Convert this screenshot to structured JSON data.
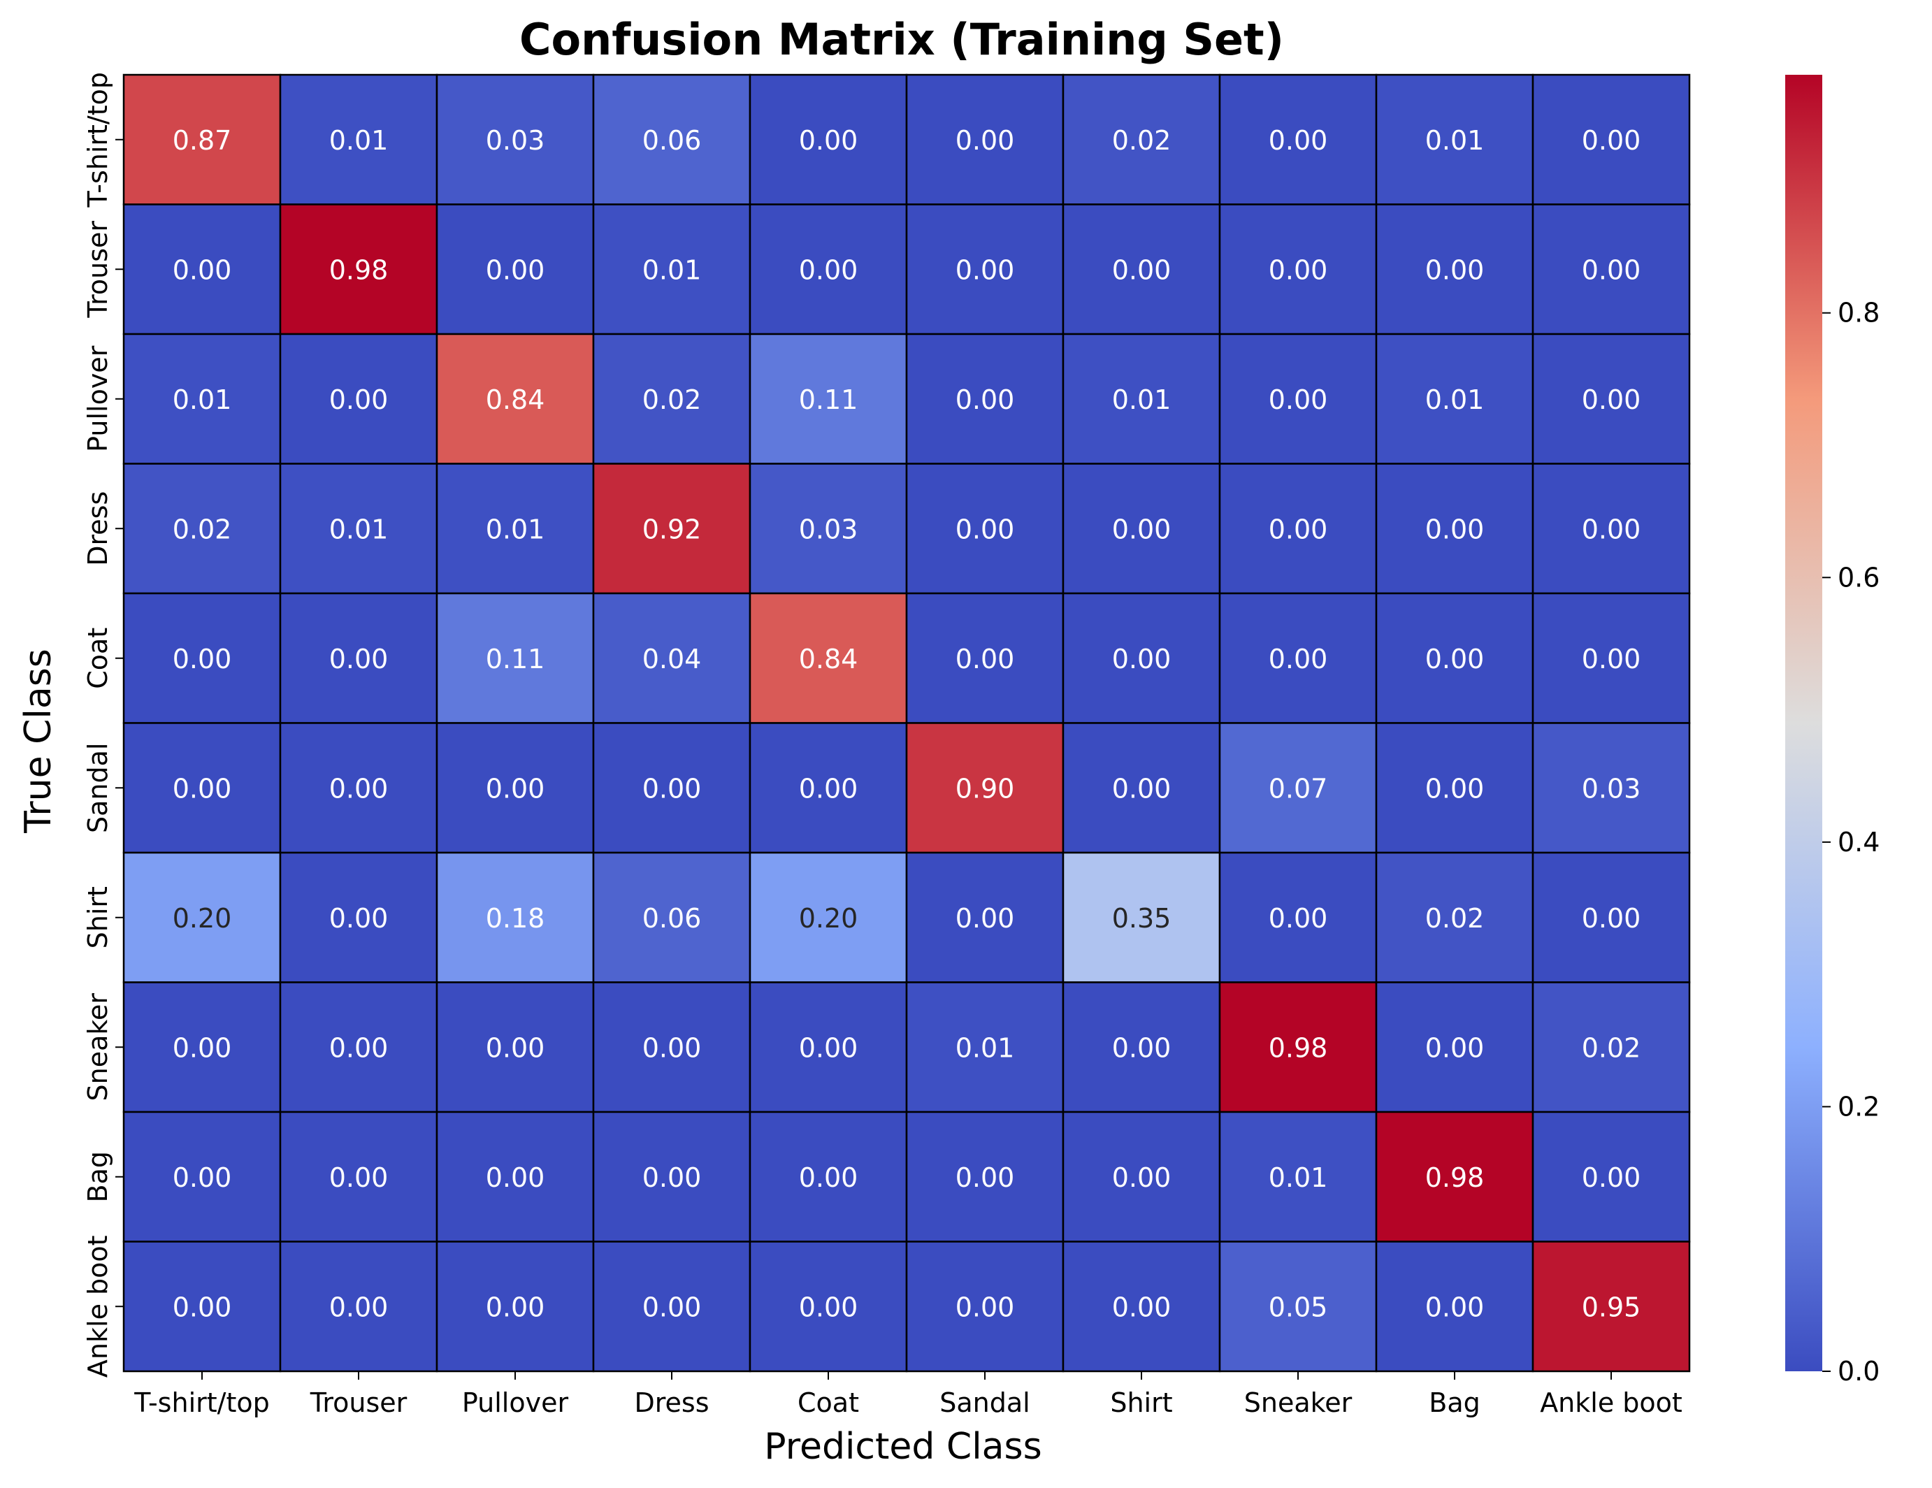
{
  "chart_data": {
    "type": "heatmap",
    "title": "Confusion Matrix (Training Set)",
    "xlabel": "Predicted Class",
    "ylabel": "True Class",
    "x_categories": [
      "T-shirt/top",
      "Trouser",
      "Pullover",
      "Dress",
      "Coat",
      "Sandal",
      "Shirt",
      "Sneaker",
      "Bag",
      "Ankle boot"
    ],
    "y_categories": [
      "T-shirt/top",
      "Trouser",
      "Pullover",
      "Dress",
      "Coat",
      "Sandal",
      "Shirt",
      "Sneaker",
      "Bag",
      "Ankle boot"
    ],
    "values": [
      [
        0.87,
        0.01,
        0.03,
        0.06,
        0.0,
        0.0,
        0.02,
        0.0,
        0.01,
        0.0
      ],
      [
        0.0,
        0.98,
        0.0,
        0.01,
        0.0,
        0.0,
        0.0,
        0.0,
        0.0,
        0.0
      ],
      [
        0.01,
        0.0,
        0.84,
        0.02,
        0.11,
        0.0,
        0.01,
        0.0,
        0.01,
        0.0
      ],
      [
        0.02,
        0.01,
        0.01,
        0.92,
        0.03,
        0.0,
        0.0,
        0.0,
        0.0,
        0.0
      ],
      [
        0.0,
        0.0,
        0.11,
        0.04,
        0.84,
        0.0,
        0.0,
        0.0,
        0.0,
        0.0
      ],
      [
        0.0,
        0.0,
        0.0,
        0.0,
        0.0,
        0.9,
        0.0,
        0.07,
        0.0,
        0.03
      ],
      [
        0.2,
        0.0,
        0.18,
        0.06,
        0.2,
        0.0,
        0.35,
        0.0,
        0.02,
        0.0
      ],
      [
        0.0,
        0.0,
        0.0,
        0.0,
        0.0,
        0.01,
        0.0,
        0.98,
        0.0,
        0.02
      ],
      [
        0.0,
        0.0,
        0.0,
        0.0,
        0.0,
        0.0,
        0.0,
        0.01,
        0.98,
        0.0
      ],
      [
        0.0,
        0.0,
        0.0,
        0.0,
        0.0,
        0.0,
        0.0,
        0.05,
        0.0,
        0.95
      ]
    ],
    "value_format": "0.00",
    "colormap": "coolwarm",
    "colormap_stops": [
      "#3b4cc0",
      "#8db0fe",
      "#dddddd",
      "#f49a7b",
      "#b40426"
    ],
    "vmin": 0.0,
    "vmax": 0.98,
    "colorbar_ticks": [
      "0.0",
      "0.2",
      "0.4",
      "0.6",
      "0.8"
    ],
    "colorbar_tick_values": [
      0.0,
      0.2,
      0.4,
      0.6,
      0.8
    ],
    "cell_border_color": "#000000",
    "grid": false,
    "legend": "colorbar-right"
  }
}
